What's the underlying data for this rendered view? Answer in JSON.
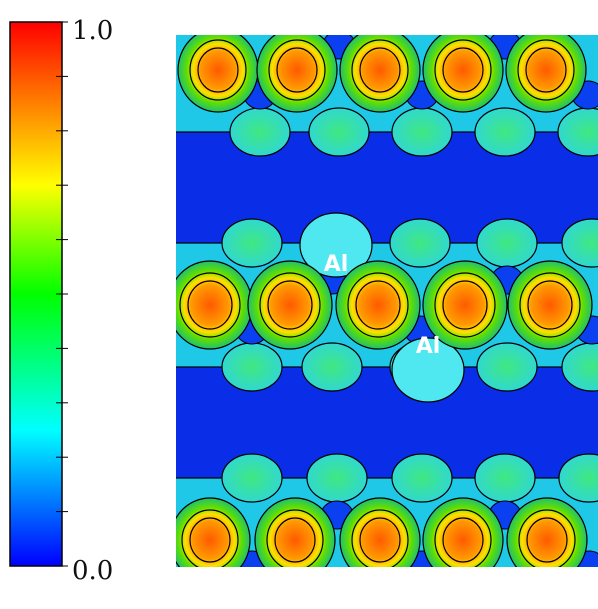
{
  "colorbar": {
    "max_label": "1.0",
    "min_label": "0.0"
  },
  "map": {
    "labels": [
      "Al",
      "Al"
    ]
  }
}
